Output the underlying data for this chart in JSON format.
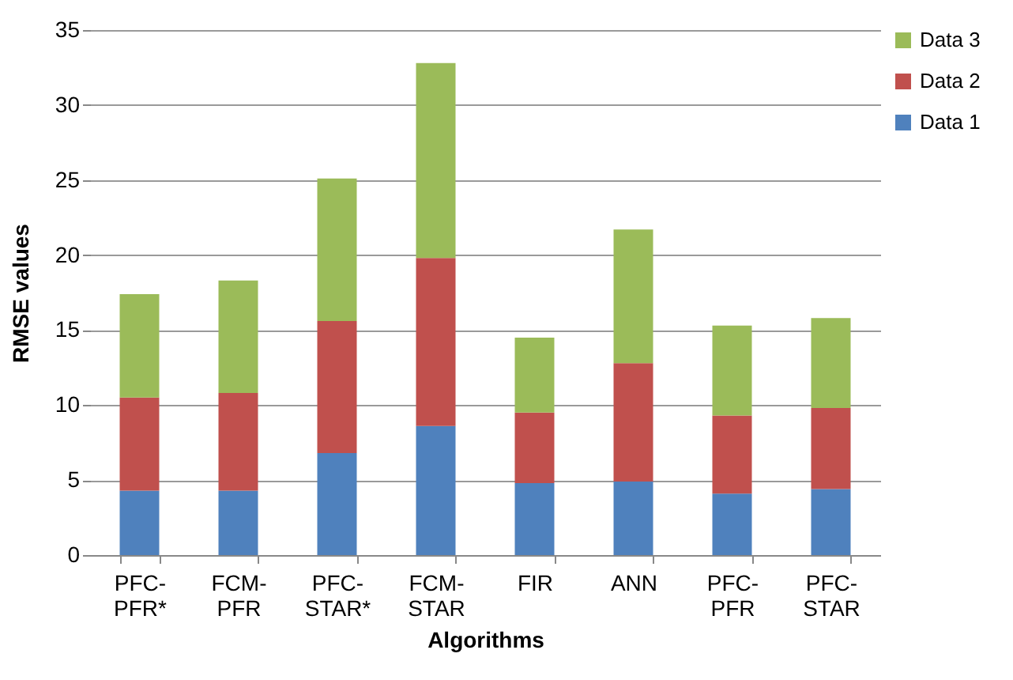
{
  "chart_data": {
    "type": "bar",
    "stacked": true,
    "xlabel": "Algorithms",
    "ylabel": "RMSE values",
    "categories": [
      "PFC-PFR*",
      "FCM-PFR",
      "PFC-STAR*",
      "FCM-STAR",
      "FIR",
      "ANN",
      "PFC-PFR",
      "PFC-STAR"
    ],
    "series": [
      {
        "name": "Data 1",
        "color": "#4f81bd",
        "values": [
          4.3,
          4.3,
          6.8,
          8.6,
          4.8,
          4.9,
          4.1,
          4.4
        ]
      },
      {
        "name": "Data 2",
        "color": "#c0504d",
        "values": [
          6.2,
          6.5,
          8.8,
          11.2,
          4.7,
          7.9,
          5.2,
          5.4
        ]
      },
      {
        "name": "Data 3",
        "color": "#9bbb59",
        "values": [
          6.9,
          7.5,
          9.5,
          13.0,
          5.0,
          8.9,
          6.0,
          6.0
        ]
      }
    ],
    "ylim": [
      0,
      35
    ],
    "yticks": [
      0,
      5,
      10,
      15,
      20,
      25,
      30,
      35
    ],
    "grid": "y",
    "legend": "right"
  }
}
